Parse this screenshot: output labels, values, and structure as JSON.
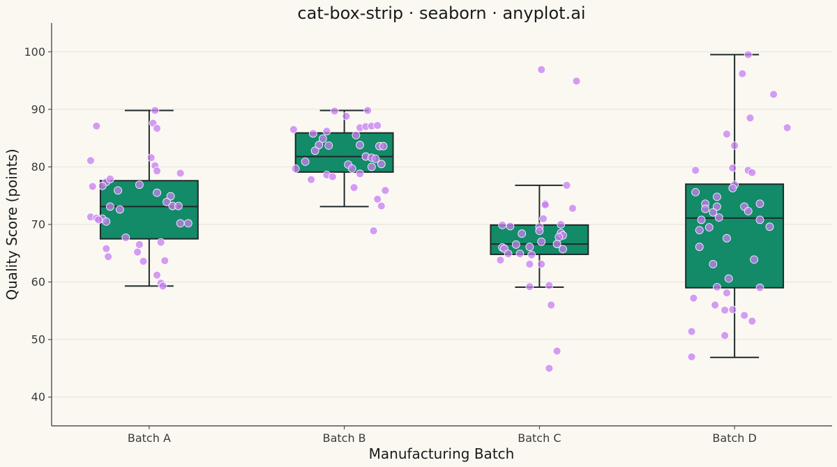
{
  "chart_data": {
    "type": "box",
    "title": "cat-box-strip · seaborn · anyplot.ai",
    "xlabel": "Manufacturing Batch",
    "ylabel": "Quality Score (points)",
    "ylim": [
      35,
      105
    ],
    "yticks": [
      40,
      50,
      60,
      70,
      80,
      90,
      100
    ],
    "grid": "y",
    "colors": {
      "box": "#138A68",
      "box_edge": "#1F2A2A",
      "point": "#C77DF0",
      "point_edge": "#FFFFFF",
      "grid": "#E6E2D8",
      "background": "#FAF8F1"
    },
    "categories": [
      "Batch A",
      "Batch B",
      "Batch C",
      "Batch D"
    ],
    "boxes": [
      {
        "category": "Batch A",
        "whisker_low": 59.3,
        "q1": 67.5,
        "median": 73.1,
        "q3": 77.6,
        "whisker_high": 89.8,
        "outliers": []
      },
      {
        "category": "Batch B",
        "whisker_low": 73.1,
        "q1": 79.1,
        "median": 81.8,
        "q3": 85.9,
        "whisker_high": 89.8,
        "outliers": []
      },
      {
        "category": "Batch C",
        "whisker_low": 59.1,
        "q1": 64.8,
        "median": 66.6,
        "q3": 69.9,
        "whisker_high": 76.8,
        "outliers": []
      },
      {
        "category": "Batch D",
        "whisker_low": 46.9,
        "q1": 59.0,
        "median": 71.1,
        "q3": 77.0,
        "whisker_high": 99.5,
        "outliers": []
      }
    ],
    "points": [
      {
        "category": "Batch A",
        "values": [
          [
            -0.27,
            87.1
          ],
          [
            -0.3,
            81.1
          ],
          [
            -0.29,
            76.6
          ],
          [
            -0.22,
            77.4
          ],
          [
            -0.2,
            77.9
          ],
          [
            -0.24,
            76.7
          ],
          [
            -0.16,
            75.9
          ],
          [
            -0.05,
            76.9
          ],
          [
            0.04,
            75.5
          ],
          [
            0.11,
            74.9
          ],
          [
            0.09,
            73.9
          ],
          [
            0.12,
            73.2
          ],
          [
            0.15,
            73.2
          ],
          [
            -0.3,
            71.3
          ],
          [
            -0.27,
            71.1
          ],
          [
            -0.24,
            71.0
          ],
          [
            -0.26,
            70.8
          ],
          [
            -0.22,
            70.5
          ],
          [
            -0.2,
            73.1
          ],
          [
            -0.15,
            72.6
          ],
          [
            0.16,
            70.2
          ],
          [
            0.2,
            70.2
          ],
          [
            -0.12,
            67.7
          ],
          [
            -0.05,
            66.5
          ],
          [
            0.06,
            66.9
          ],
          [
            -0.22,
            65.8
          ],
          [
            -0.06,
            65.2
          ],
          [
            -0.21,
            64.4
          ],
          [
            -0.03,
            63.6
          ],
          [
            0.08,
            63.7
          ],
          [
            0.04,
            61.2
          ],
          [
            0.06,
            59.8
          ],
          [
            0.07,
            59.3
          ],
          [
            0.03,
            89.8
          ],
          [
            0.02,
            87.6
          ],
          [
            0.04,
            86.7
          ],
          [
            0.01,
            81.6
          ],
          [
            0.03,
            80.2
          ],
          [
            0.04,
            79.3
          ],
          [
            0.16,
            78.9
          ]
        ]
      },
      {
        "category": "Batch B",
        "values": [
          [
            -0.09,
            86.2
          ],
          [
            -0.05,
            89.7
          ],
          [
            0.01,
            88.8
          ],
          [
            0.12,
            89.8
          ],
          [
            -0.26,
            86.5
          ],
          [
            -0.16,
            85.8
          ],
          [
            0.06,
            85.5
          ],
          [
            0.08,
            86.8
          ],
          [
            0.11,
            87.0
          ],
          [
            0.14,
            87.1
          ],
          [
            0.17,
            87.2
          ],
          [
            -0.11,
            84.9
          ],
          [
            -0.13,
            83.8
          ],
          [
            -0.08,
            83.7
          ],
          [
            0.08,
            83.8
          ],
          [
            0.18,
            83.6
          ],
          [
            0.2,
            83.6
          ],
          [
            -0.15,
            82.8
          ],
          [
            -0.2,
            80.9
          ],
          [
            0.11,
            81.8
          ],
          [
            0.14,
            81.6
          ],
          [
            0.16,
            81.4
          ],
          [
            0.19,
            80.5
          ],
          [
            -0.25,
            79.7
          ],
          [
            0.02,
            80.4
          ],
          [
            0.04,
            79.7
          ],
          [
            0.14,
            80.0
          ],
          [
            0.08,
            78.8
          ],
          [
            -0.09,
            78.6
          ],
          [
            -0.06,
            78.3
          ],
          [
            -0.17,
            77.8
          ],
          [
            0.05,
            76.4
          ],
          [
            0.21,
            75.9
          ],
          [
            0.17,
            74.4
          ],
          [
            0.19,
            73.2
          ],
          [
            0.15,
            68.9
          ]
        ]
      },
      {
        "category": "Batch C",
        "values": [
          [
            0.01,
            96.9
          ],
          [
            0.19,
            94.9
          ],
          [
            0.14,
            76.8
          ],
          [
            0.03,
            73.6
          ],
          [
            0.03,
            73.4
          ],
          [
            0.17,
            72.8
          ],
          [
            0.02,
            71.0
          ],
          [
            -0.19,
            69.9
          ],
          [
            -0.15,
            69.7
          ],
          [
            0.11,
            70.0
          ],
          [
            0.0,
            69.6
          ],
          [
            0.0,
            68.9
          ],
          [
            0.11,
            68.5
          ],
          [
            -0.09,
            68.4
          ],
          [
            0.12,
            68.1
          ],
          [
            0.1,
            67.8
          ],
          [
            0.01,
            67.0
          ],
          [
            -0.12,
            66.5
          ],
          [
            -0.19,
            66.0
          ],
          [
            -0.18,
            65.8
          ],
          [
            -0.05,
            66.1
          ],
          [
            0.09,
            66.6
          ],
          [
            0.12,
            65.7
          ],
          [
            -0.1,
            64.9
          ],
          [
            -0.16,
            64.9
          ],
          [
            -0.04,
            64.7
          ],
          [
            -0.2,
            63.8
          ],
          [
            -0.05,
            63.1
          ],
          [
            0.01,
            63.1
          ],
          [
            -0.05,
            59.2
          ],
          [
            0.05,
            59.4
          ],
          [
            0.06,
            56.0
          ],
          [
            0.09,
            48.0
          ],
          [
            0.05,
            45.0
          ]
        ]
      },
      {
        "category": "Batch D",
        "values": [
          [
            0.07,
            99.5
          ],
          [
            0.04,
            96.2
          ],
          [
            0.2,
            92.6
          ],
          [
            0.27,
            86.8
          ],
          [
            -0.04,
            85.7
          ],
          [
            0.08,
            88.5
          ],
          [
            0.0,
            83.7
          ],
          [
            -0.2,
            79.4
          ],
          [
            -0.01,
            79.8
          ],
          [
            0.07,
            79.4
          ],
          [
            0.09,
            79.0
          ],
          [
            0.0,
            76.9
          ],
          [
            -0.01,
            76.3
          ],
          [
            -0.2,
            75.6
          ],
          [
            -0.09,
            74.8
          ],
          [
            -0.15,
            73.6
          ],
          [
            0.05,
            73.1
          ],
          [
            -0.09,
            73.1
          ],
          [
            0.13,
            73.6
          ],
          [
            -0.15,
            72.7
          ],
          [
            -0.11,
            72.1
          ],
          [
            0.07,
            72.3
          ],
          [
            -0.08,
            71.2
          ],
          [
            -0.17,
            70.8
          ],
          [
            0.13,
            70.8
          ],
          [
            0.18,
            69.6
          ],
          [
            -0.13,
            69.5
          ],
          [
            -0.18,
            69.0
          ],
          [
            -0.04,
            67.6
          ],
          [
            -0.18,
            66.1
          ],
          [
            0.1,
            63.9
          ],
          [
            -0.11,
            63.1
          ],
          [
            -0.03,
            60.6
          ],
          [
            -0.09,
            59.1
          ],
          [
            0.13,
            59.0
          ],
          [
            -0.04,
            58.1
          ],
          [
            -0.21,
            57.2
          ],
          [
            -0.1,
            56.0
          ],
          [
            -0.05,
            55.1
          ],
          [
            -0.01,
            55.2
          ],
          [
            0.05,
            54.2
          ],
          [
            0.09,
            53.2
          ],
          [
            -0.22,
            51.4
          ],
          [
            -0.05,
            50.7
          ],
          [
            -0.22,
            47.0
          ]
        ]
      }
    ]
  }
}
